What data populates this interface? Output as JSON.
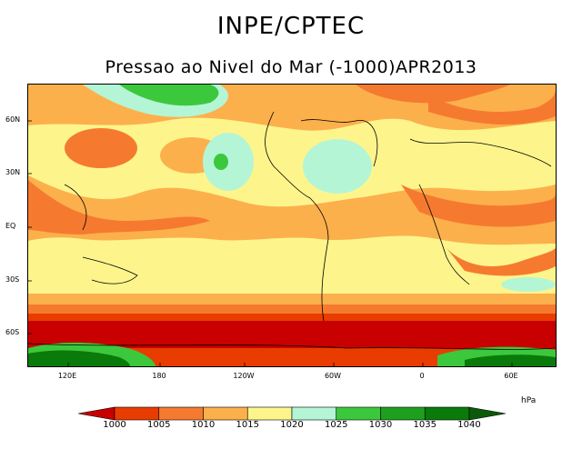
{
  "header": {
    "title": "INPE/CPTEC",
    "subtitle": "Pressao ao Nivel do Mar (-1000)APR2013"
  },
  "map": {
    "lat_labels": [
      "60N",
      "30N",
      "EQ",
      "30S",
      "60S"
    ],
    "lon_labels": [
      "120E",
      "180",
      "120W",
      "60W",
      "0",
      "60E"
    ]
  },
  "colorbar": {
    "unit": "hPa",
    "levels": [
      "1000",
      "1005",
      "1010",
      "1015",
      "1020",
      "1025",
      "1030",
      "1035",
      "1040"
    ],
    "colors": [
      "#c80000",
      "#e83c00",
      "#f57a30",
      "#fcb04c",
      "#fdf58c",
      "#b4f5d6",
      "#3cc83c",
      "#1ea01e",
      "#0a7a0a",
      "#0a5a0a"
    ]
  }
}
